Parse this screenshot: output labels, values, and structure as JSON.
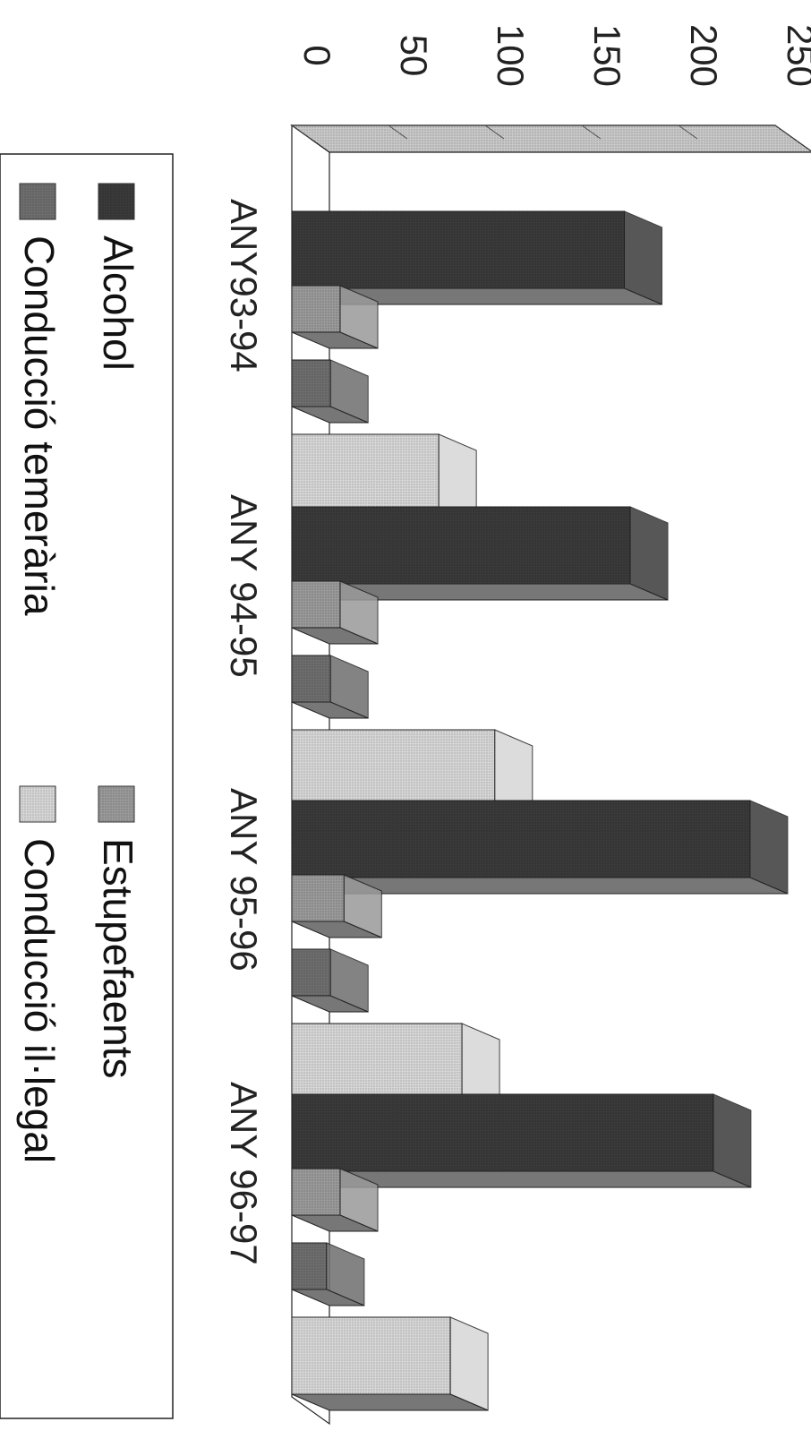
{
  "chart_data": {
    "type": "bar",
    "orientation": "rotated-90-clockwise",
    "three_d": true,
    "categories": [
      "ANY93-94",
      "ANY 94-95",
      "ANY 95-96",
      "ANY 96-97"
    ],
    "series": [
      {
        "name": "Alcohol",
        "values": [
          172,
          175,
          237,
          218
        ],
        "color": "#3a3a3a"
      },
      {
        "name": "Estupefaents",
        "values": [
          25,
          25,
          27,
          25
        ],
        "color": "#9a9a9a"
      },
      {
        "name": "Conducció temerària",
        "values": [
          20,
          20,
          20,
          18
        ],
        "color": "#6e6e6e"
      },
      {
        "name": "Conducció il·legal",
        "values": [
          76,
          105,
          88,
          82
        ],
        "color": "#d6d6d6"
      }
    ],
    "yticks": [
      "0",
      "50",
      "100",
      "150",
      "200",
      "250"
    ],
    "ylim": [
      0,
      250
    ],
    "grid": false,
    "legend_position": "bottom"
  }
}
